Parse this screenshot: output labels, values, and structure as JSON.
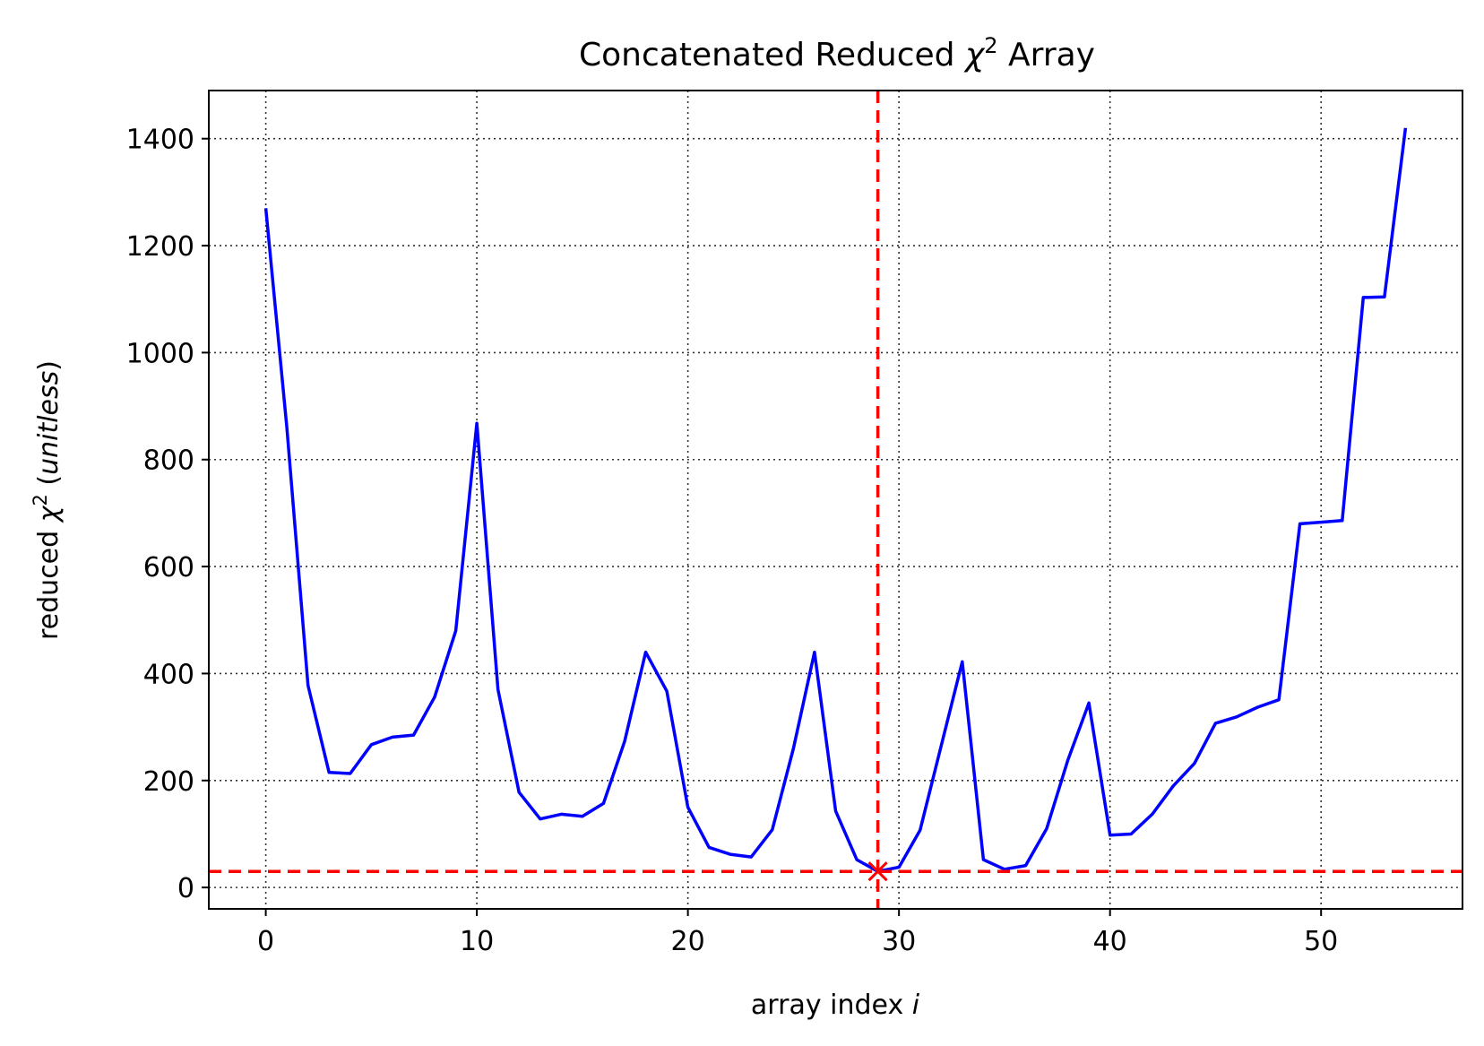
{
  "chart_data": {
    "type": "line",
    "title": {
      "prefix": "Concatenated Reduced ",
      "symbol": "χ",
      "sup": "2",
      "suffix": " Array"
    },
    "xlabel": {
      "text": "array index ",
      "var": "i"
    },
    "ylabel": {
      "prefix": "reduced ",
      "symbol": "χ",
      "sup": "2",
      "mid": " (",
      "units": "unitless",
      "suffix": ")"
    },
    "xlim": [
      -2.7,
      56.7
    ],
    "ylim": [
      -40,
      1490
    ],
    "xticks": [
      0,
      10,
      20,
      30,
      40,
      50
    ],
    "xtick_labels": [
      "0",
      "10",
      "20",
      "30",
      "40",
      "50"
    ],
    "yticks": [
      0,
      200,
      400,
      600,
      800,
      1000,
      1200,
      1400
    ],
    "ytick_labels": [
      "0",
      "200",
      "400",
      "600",
      "800",
      "1000",
      "1200",
      "1400"
    ],
    "grid": true,
    "series": [
      {
        "color": "#0000ff",
        "x": [
          0,
          1,
          2,
          3,
          4,
          5,
          6,
          7,
          8,
          9,
          10,
          11,
          12,
          13,
          14,
          15,
          16,
          17,
          18,
          19,
          20,
          21,
          22,
          23,
          24,
          25,
          26,
          27,
          28,
          29,
          30,
          31,
          32,
          33,
          34,
          35,
          36,
          37,
          38,
          39,
          40,
          41,
          42,
          43,
          44,
          45,
          46,
          47,
          48,
          49,
          50,
          51,
          52,
          53,
          54
        ],
        "values": [
          1270,
          860,
          378,
          215,
          213,
          267,
          281,
          285,
          356,
          480,
          868,
          370,
          178,
          128,
          137,
          133,
          157,
          273,
          440,
          367,
          150,
          75,
          62,
          57,
          108,
          260,
          440,
          143,
          52,
          30,
          38,
          107,
          265,
          422,
          52,
          34,
          41,
          110,
          238,
          345,
          98,
          100,
          137,
          190,
          232,
          307,
          319,
          337,
          351,
          680,
          683,
          686,
          1103,
          1104,
          1420
        ]
      }
    ],
    "reference_lines": {
      "color": "#ff0000",
      "x": 29,
      "y": 30
    },
    "marker": {
      "x": 29,
      "y": 30,
      "color": "#ff0000",
      "shape": "x"
    }
  }
}
